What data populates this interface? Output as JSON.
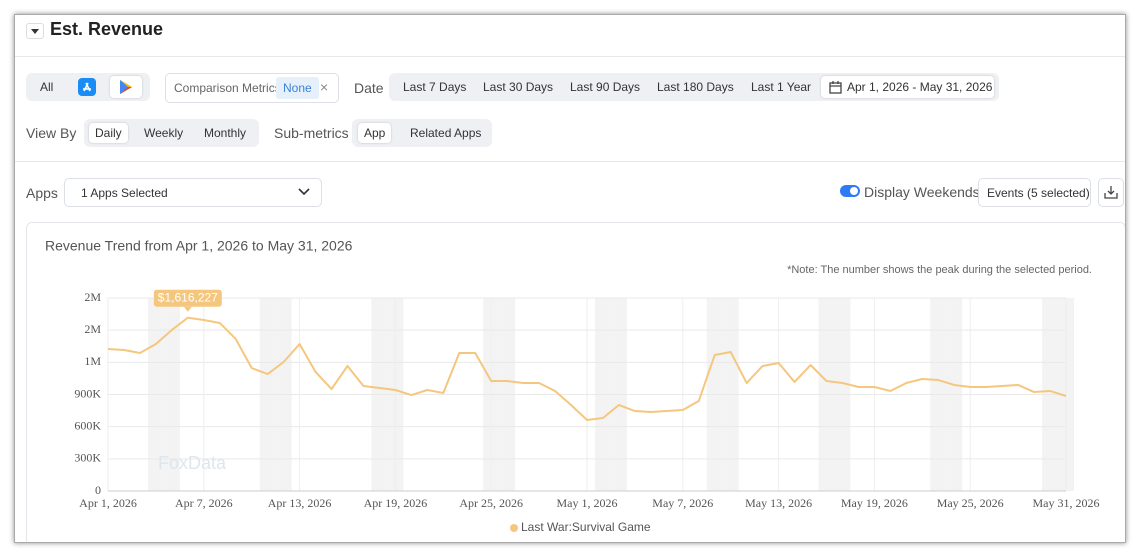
{
  "header": {
    "title": "Est. Revenue"
  },
  "filters": {
    "platform_all": "All",
    "comparison_label": "Comparison Metrics",
    "comparison_value": "None",
    "date_label": "Date",
    "date_options": [
      "Last 7 Days",
      "Last 30 Days",
      "Last 90 Days",
      "Last 180 Days",
      "Last 1 Year"
    ],
    "date_range": "Apr 1, 2026 - May 31, 2026",
    "view_by_label": "View By",
    "view_by_options": [
      "Daily",
      "Weekly",
      "Monthly"
    ],
    "sub_metrics_label": "Sub-metrics",
    "sub_metrics_options": [
      "App",
      "Related Apps"
    ],
    "apps_label": "Apps",
    "apps_select": "1 Apps Selected",
    "display_weekends_label": "Display Weekends",
    "events": "Events (5 selected)"
  },
  "chart_data": {
    "type": "line",
    "title": "Revenue Trend from Apr 1, 2026 to May 31, 2026",
    "note": "*Note: The number shows the peak during the selected period.",
    "watermark": "FoxData",
    "display_weekends": true,
    "grid": true,
    "categories": [
      "Apr 1, 2026",
      null,
      null,
      null,
      null,
      null,
      "Apr 7, 2026",
      null,
      null,
      null,
      null,
      null,
      "Apr 13, 2026",
      null,
      null,
      null,
      null,
      null,
      "Apr 19, 2026",
      null,
      null,
      null,
      null,
      null,
      "Apr 25, 2026",
      null,
      null,
      null,
      null,
      null,
      "May 1, 2026",
      null,
      null,
      null,
      null,
      null,
      "May 7, 2026",
      null,
      null,
      null,
      null,
      null,
      "May 13, 2026",
      null,
      null,
      null,
      null,
      null,
      "May 19, 2026",
      null,
      null,
      null,
      null,
      null,
      "May 25, 2026",
      null,
      null,
      null,
      null,
      null,
      "May 31, 2026"
    ],
    "ylim": [
      0,
      1800000
    ],
    "yticks": [
      0,
      {
        "value": 300000,
        "label": "300K"
      },
      {
        "value": 600000,
        "label": "600K"
      },
      {
        "value": 900000,
        "label": "900K"
      },
      {
        "value": 1200000,
        "label": "1M"
      },
      {
        "value": 1500000,
        "label": "2M"
      },
      {
        "value": 1800000,
        "label": "2M"
      }
    ],
    "series": [
      {
        "name": "Last War:Survival Game",
        "color": "#f5c77e",
        "values": [
          1324000,
          1315000,
          1287000,
          1371000,
          1502000,
          1616227,
          1595000,
          1567000,
          1418000,
          1147000,
          1091000,
          1203000,
          1371000,
          1110000,
          951000,
          1166000,
          979000,
          961000,
          942000,
          895000,
          942000,
          914000,
          1287000,
          1287000,
          1026000,
          1026000,
          1007000,
          1007000,
          933000,
          802000,
          662000,
          681000,
          802000,
          746000,
          737000,
          746000,
          755000,
          839000,
          1268000,
          1296000,
          1007000,
          1166000,
          1194000,
          1017000,
          1175000,
          1026000,
          1007000,
          970000,
          970000,
          933000,
          1007000,
          1045000,
          1035000,
          989000,
          970000,
          970000,
          979000,
          989000,
          923000,
          933000,
          886000
        ],
        "value_labels": [
          null,
          null,
          null,
          null,
          null,
          "$1,616,227",
          null,
          null,
          null,
          null,
          null,
          null,
          null,
          null,
          null,
          null,
          null,
          null,
          null,
          null,
          null,
          null,
          null,
          null,
          null,
          null,
          null,
          null,
          null,
          null,
          null,
          null,
          null,
          null,
          null,
          null,
          null,
          null,
          null,
          null,
          null,
          null,
          null,
          null,
          null,
          null,
          null,
          null,
          null,
          null,
          null,
          null,
          null,
          null,
          null,
          null,
          null,
          null,
          null,
          null,
          null
        ]
      }
    ]
  }
}
